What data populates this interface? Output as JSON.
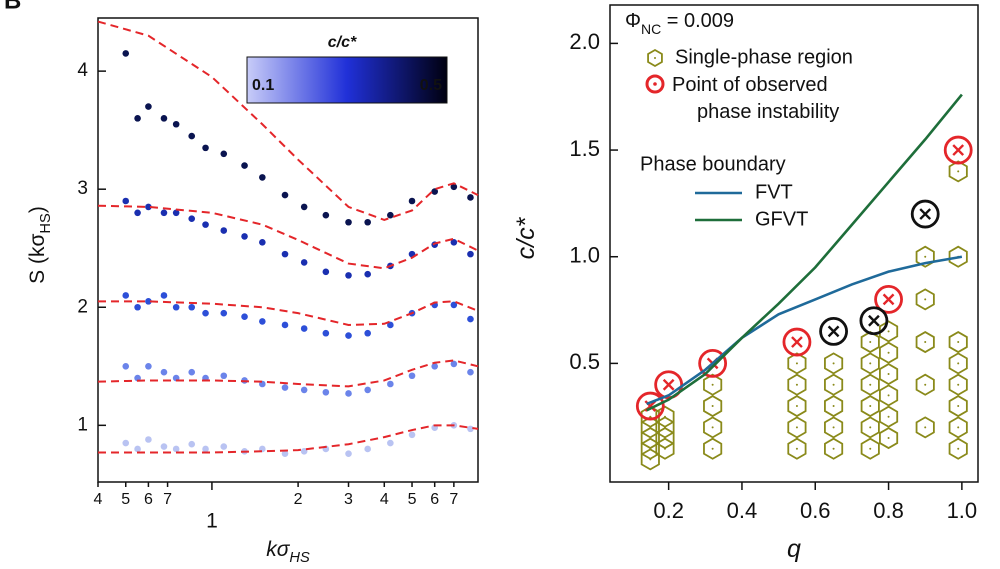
{
  "chart_data": [
    {
      "type": "scatter",
      "xscale": "log",
      "xlabel": [
        "kσ",
        {
          "sub": "HS"
        }
      ],
      "ylabel": [
        "S (kσ",
        {
          "sub": "HS"
        },
        ")"
      ],
      "panel_label": "B",
      "xlim": [
        0.4,
        8.5
      ],
      "ylim": [
        0.52,
        4.45
      ],
      "xticks": [
        {
          "value": 0.4,
          "label": "4"
        },
        {
          "value": 0.5,
          "label": "5"
        },
        {
          "value": 0.6,
          "label": "6"
        },
        {
          "value": 0.7,
          "label": "7"
        },
        1,
        2,
        3,
        4,
        5,
        6,
        7
      ],
      "yticks": [
        1,
        2,
        3,
        4
      ],
      "colorbar": {
        "title": "c/c*",
        "colors": [
          "#c8ccf8",
          "#2030d8",
          "#000010"
        ],
        "ticks": [
          "0.1",
          "0.5"
        ]
      },
      "series": [
        {
          "mode": "markers",
          "color": "#b9c3f2",
          "x": [
            0.5,
            0.55,
            0.6,
            0.68,
            0.75,
            0.85,
            0.95,
            1.1,
            1.3,
            1.5,
            1.8,
            2.1,
            2.5,
            3.0,
            3.5,
            4.2,
            5.0,
            6.0,
            7.0,
            8.0
          ],
          "values": [
            0.85,
            0.8,
            0.88,
            0.82,
            0.8,
            0.84,
            0.8,
            0.82,
            0.78,
            0.8,
            0.76,
            0.78,
            0.8,
            0.76,
            0.8,
            0.85,
            0.92,
            0.98,
            1.0,
            0.97
          ]
        },
        {
          "mode": "markers",
          "color": "#6b84ea",
          "x": [
            0.5,
            0.55,
            0.6,
            0.68,
            0.75,
            0.85,
            0.95,
            1.1,
            1.3,
            1.5,
            1.8,
            2.1,
            2.5,
            3.0,
            3.5,
            4.2,
            5.0,
            6.0,
            7.0,
            8.0
          ],
          "values": [
            1.5,
            1.4,
            1.5,
            1.45,
            1.4,
            1.45,
            1.4,
            1.42,
            1.38,
            1.35,
            1.32,
            1.3,
            1.28,
            1.27,
            1.3,
            1.35,
            1.42,
            1.5,
            1.52,
            1.45
          ]
        },
        {
          "mode": "markers",
          "color": "#2d4fd8",
          "x": [
            0.5,
            0.55,
            0.6,
            0.68,
            0.75,
            0.85,
            0.95,
            1.1,
            1.3,
            1.5,
            1.8,
            2.1,
            2.5,
            3.0,
            3.5,
            4.2,
            5.0,
            6.0,
            7.0,
            8.0
          ],
          "values": [
            2.1,
            2.0,
            2.05,
            2.1,
            2.0,
            2.0,
            1.95,
            1.95,
            1.92,
            1.88,
            1.85,
            1.82,
            1.78,
            1.76,
            1.78,
            1.85,
            1.95,
            2.02,
            2.02,
            1.9
          ]
        },
        {
          "mode": "markers",
          "color": "#1a2fb0",
          "x": [
            0.5,
            0.55,
            0.6,
            0.68,
            0.75,
            0.85,
            0.95,
            1.1,
            1.3,
            1.5,
            1.8,
            2.1,
            2.5,
            3.0,
            3.5,
            4.2,
            5.0,
            6.0,
            7.0,
            8.0
          ],
          "values": [
            2.9,
            2.8,
            2.85,
            2.8,
            2.8,
            2.75,
            2.7,
            2.65,
            2.6,
            2.55,
            2.45,
            2.38,
            2.3,
            2.27,
            2.28,
            2.35,
            2.45,
            2.53,
            2.55,
            2.45
          ]
        },
        {
          "mode": "markers",
          "color": "#0a1450",
          "x": [
            0.5,
            0.55,
            0.6,
            0.68,
            0.75,
            0.85,
            0.95,
            1.1,
            1.3,
            1.5,
            1.8,
            2.1,
            2.5,
            3.0,
            3.5,
            4.2,
            5.0,
            6.0,
            7.0,
            8.0
          ],
          "values": [
            4.15,
            3.6,
            3.7,
            3.6,
            3.55,
            3.45,
            3.35,
            3.3,
            3.2,
            3.1,
            2.95,
            2.85,
            2.78,
            2.72,
            2.72,
            2.78,
            2.9,
            2.98,
            3.02,
            2.93
          ]
        },
        {
          "mode": "line",
          "dash": true,
          "color": "#e4262a",
          "x": [
            0.4,
            0.6,
            1,
            1.5,
            2,
            3,
            4,
            5,
            6,
            7,
            8.5
          ],
          "values": [
            0.77,
            0.77,
            0.77,
            0.78,
            0.79,
            0.84,
            0.9,
            0.96,
            1.0,
            1.0,
            0.97
          ]
        },
        {
          "mode": "line",
          "dash": true,
          "color": "#e4262a",
          "x": [
            0.4,
            0.6,
            1,
            1.5,
            2,
            3,
            4,
            5,
            6,
            7,
            8.5
          ],
          "values": [
            1.37,
            1.38,
            1.38,
            1.37,
            1.35,
            1.33,
            1.38,
            1.47,
            1.53,
            1.55,
            1.5
          ]
        },
        {
          "mode": "line",
          "dash": true,
          "color": "#e4262a",
          "x": [
            0.4,
            0.6,
            1,
            1.5,
            2,
            3,
            4,
            5,
            6,
            7,
            8.5
          ],
          "values": [
            2.05,
            2.05,
            2.03,
            2.0,
            1.95,
            1.85,
            1.86,
            1.95,
            2.04,
            2.05,
            1.97
          ]
        },
        {
          "mode": "line",
          "dash": true,
          "color": "#e4262a",
          "x": [
            0.4,
            0.6,
            1,
            1.5,
            2,
            3,
            4,
            5,
            6,
            7,
            8.5
          ],
          "values": [
            2.86,
            2.85,
            2.8,
            2.7,
            2.57,
            2.37,
            2.33,
            2.42,
            2.54,
            2.58,
            2.48
          ]
        },
        {
          "mode": "line",
          "dash": true,
          "color": "#e4262a",
          "x": [
            0.4,
            0.6,
            1,
            1.5,
            2,
            3,
            4,
            5,
            6,
            7,
            8.5
          ],
          "values": [
            4.42,
            4.3,
            3.95,
            3.55,
            3.25,
            2.85,
            2.74,
            2.82,
            3.0,
            3.05,
            2.95
          ]
        }
      ]
    },
    {
      "type": "scatter",
      "xscale": "linear",
      "xlabel": [
        "q"
      ],
      "ylabel": [
        "c/c*"
      ],
      "annotation": [
        "Φ",
        {
          "sub": "NC"
        },
        " = 0.009"
      ],
      "legend_title": "Phase boundary",
      "xlim": [
        0.04,
        1.044
      ],
      "ylim": [
        -0.056,
        2.18
      ],
      "xticks": [
        0.2,
        0.4,
        0.6,
        0.8,
        {
          "value": 1,
          "label": "1.0"
        }
      ],
      "yticks": [
        0.5,
        {
          "value": 1,
          "label": "1.0"
        },
        1.5,
        {
          "value": 2,
          "label": "2.0"
        }
      ],
      "series": [
        {
          "mode": "markers",
          "marker": "hexagon",
          "name": "Single-phase region",
          "color": "#8a8a1a",
          "x": [
            0.15,
            0.15,
            0.15,
            0.15,
            0.15,
            0.19,
            0.19,
            0.19,
            0.19,
            0.32,
            0.32,
            0.32,
            0.32,
            0.55,
            0.55,
            0.55,
            0.55,
            0.55,
            0.65,
            0.65,
            0.65,
            0.65,
            0.65,
            0.75,
            0.75,
            0.75,
            0.75,
            0.75,
            0.75,
            0.8,
            0.8,
            0.8,
            0.8,
            0.8,
            0.8,
            0.9,
            0.9,
            0.9,
            0.9,
            0.9,
            0.99,
            0.99,
            0.99,
            0.99,
            0.99,
            0.99,
            0.99,
            0.99
          ],
          "values": [
            0.05,
            0.1,
            0.15,
            0.2,
            0.25,
            0.1,
            0.15,
            0.2,
            0.25,
            0.1,
            0.2,
            0.3,
            0.4,
            0.1,
            0.2,
            0.3,
            0.4,
            0.5,
            0.1,
            0.2,
            0.3,
            0.4,
            0.5,
            0.1,
            0.2,
            0.3,
            0.4,
            0.5,
            0.6,
            0.15,
            0.25,
            0.35,
            0.45,
            0.55,
            0.65,
            0.2,
            0.4,
            0.6,
            0.8,
            1.0,
            0.1,
            0.2,
            0.3,
            0.4,
            0.5,
            0.6,
            1.0,
            1.4
          ]
        },
        {
          "mode": "markers",
          "marker": "circle-x",
          "name": "Point of observed phase instability",
          "color": "#e4262a",
          "x": [
            0.15,
            0.2,
            0.32,
            0.55,
            0.8,
            0.99
          ],
          "values": [
            0.3,
            0.4,
            0.5,
            0.6,
            0.8,
            1.5
          ]
        },
        {
          "mode": "markers",
          "marker": "circle-x",
          "color": "#111111",
          "x": [
            0.65,
            0.76,
            0.9
          ],
          "values": [
            0.65,
            0.7,
            1.2
          ]
        },
        {
          "mode": "line",
          "name": "FVT",
          "color": "#1f6a9a",
          "x": [
            0.14,
            0.2,
            0.3,
            0.4,
            0.5,
            0.6,
            0.7,
            0.8,
            0.9,
            1.0
          ],
          "values": [
            0.31,
            0.35,
            0.47,
            0.62,
            0.73,
            0.8,
            0.87,
            0.93,
            0.97,
            1.0
          ]
        },
        {
          "mode": "line",
          "name": "GFVT",
          "color": "#1e6e3a",
          "x": [
            0.14,
            0.2,
            0.3,
            0.4,
            0.5,
            0.6,
            0.7,
            0.8,
            0.9,
            1.0
          ],
          "values": [
            0.28,
            0.33,
            0.45,
            0.62,
            0.78,
            0.95,
            1.15,
            1.35,
            1.55,
            1.76
          ]
        }
      ]
    }
  ]
}
